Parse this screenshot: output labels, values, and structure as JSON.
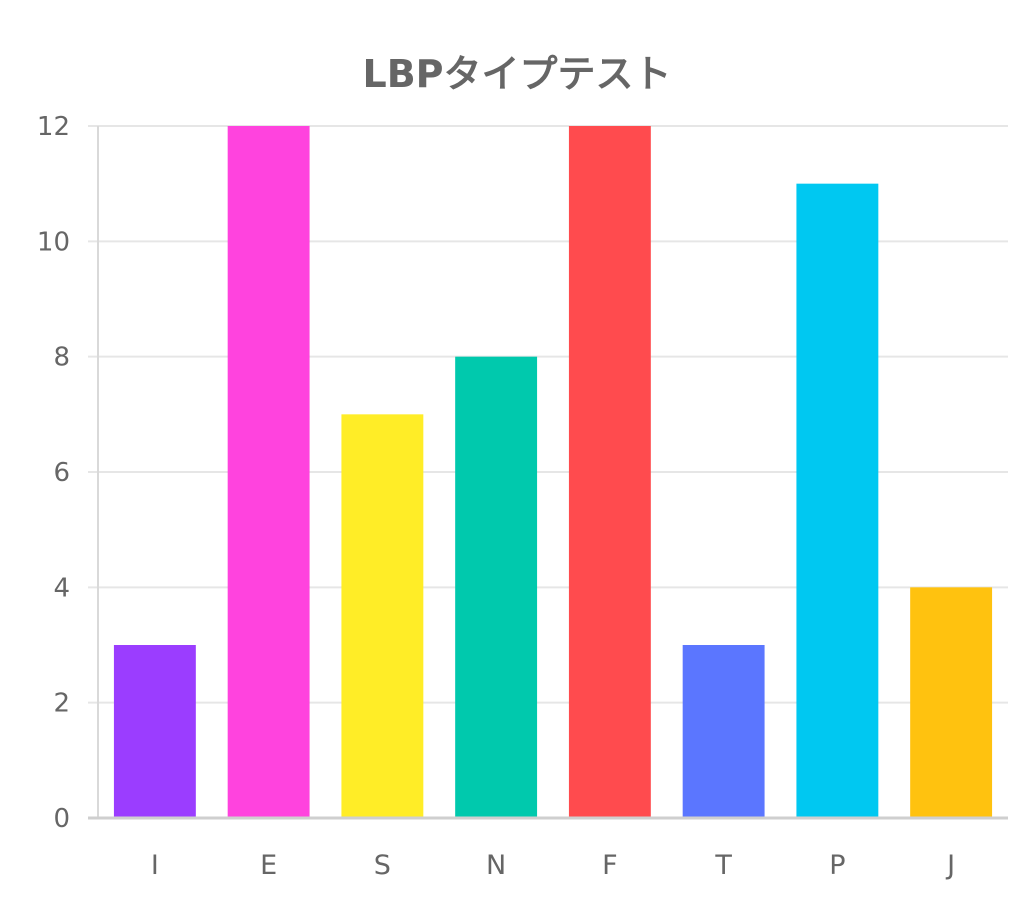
{
  "chart_data": {
    "type": "bar",
    "title": "LBPタイプテスト",
    "xlabel": "",
    "ylabel": "",
    "categories": [
      "I",
      "E",
      "S",
      "N",
      "F",
      "T",
      "P",
      "J"
    ],
    "values": [
      3,
      12,
      7,
      8,
      12,
      3,
      11,
      4
    ],
    "colors": [
      "#9b3dff",
      "#ff43de",
      "#ffed27",
      "#00c9ad",
      "#ff4b4e",
      "#5b76ff",
      "#00c8f1",
      "#ffc20f"
    ],
    "ylim": [
      0,
      12
    ],
    "yticks": [
      0,
      2,
      4,
      6,
      8,
      10,
      12
    ],
    "grid": true,
    "legend": "none"
  }
}
